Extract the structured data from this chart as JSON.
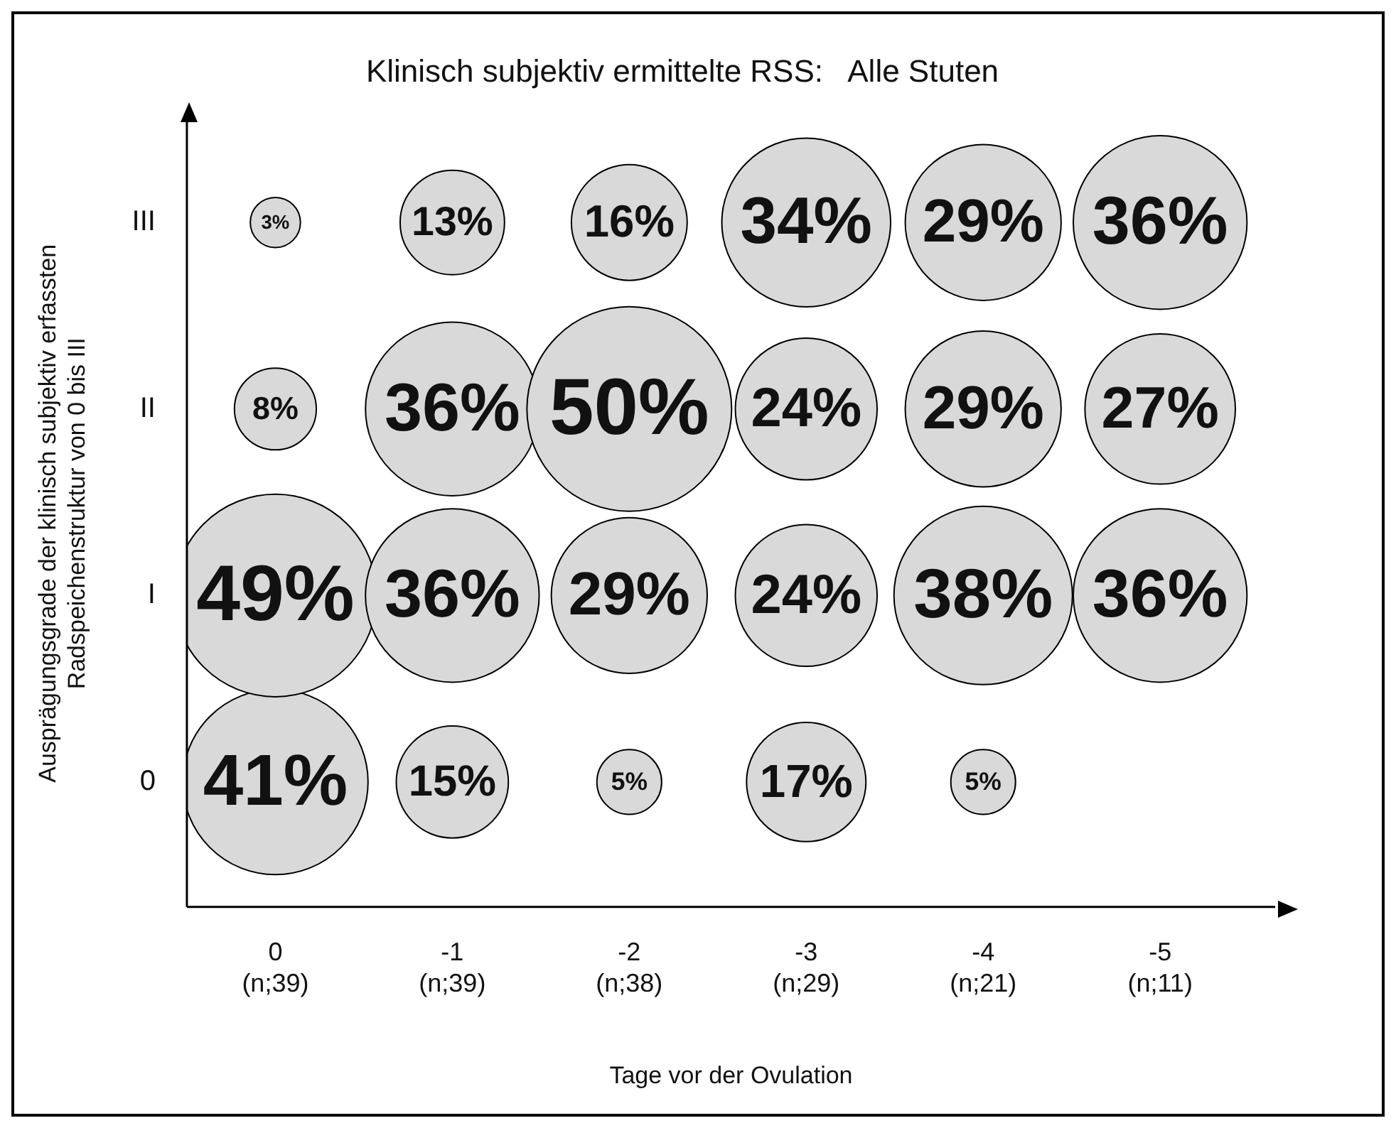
{
  "chart_data": {
    "type": "heatmap",
    "title": "Klinisch subjektiv ermittelte RSS:   Alle Stuten",
    "xlabel": "Tage vor der Ovulation",
    "ylabel": "Ausprägungsgrade der klinisch subjektiv erfassten\nRadspeichenstruktur von 0 bis III",
    "categories": [
      "0\n(n;39)",
      "-1\n(n;39)",
      "-2\n(n;38)",
      "-3\n(n;29)",
      "-4\n(n;21)",
      "-5\n(n;11)"
    ],
    "y_categories": [
      "III",
      "II",
      "I",
      "0"
    ],
    "color": "#d9d9d9",
    "grid": false,
    "legend": false,
    "cells": [
      [
        3,
        13,
        16,
        34,
        29,
        36
      ],
      [
        8,
        36,
        50,
        24,
        29,
        27
      ],
      [
        49,
        36,
        29,
        24,
        38,
        36
      ],
      [
        41,
        15,
        5,
        17,
        5,
        null
      ]
    ],
    "cell_labels": [
      [
        "3%",
        "13%",
        "16%",
        "34%",
        "29%",
        "36%"
      ],
      [
        "8%",
        "36%",
        "50%",
        "24%",
        "29%",
        "27%"
      ],
      [
        "49%",
        "36%",
        "29%",
        "24%",
        "38%",
        "36%"
      ],
      [
        "41%",
        "15%",
        "5%",
        "17%",
        "5%",
        null
      ]
    ]
  }
}
